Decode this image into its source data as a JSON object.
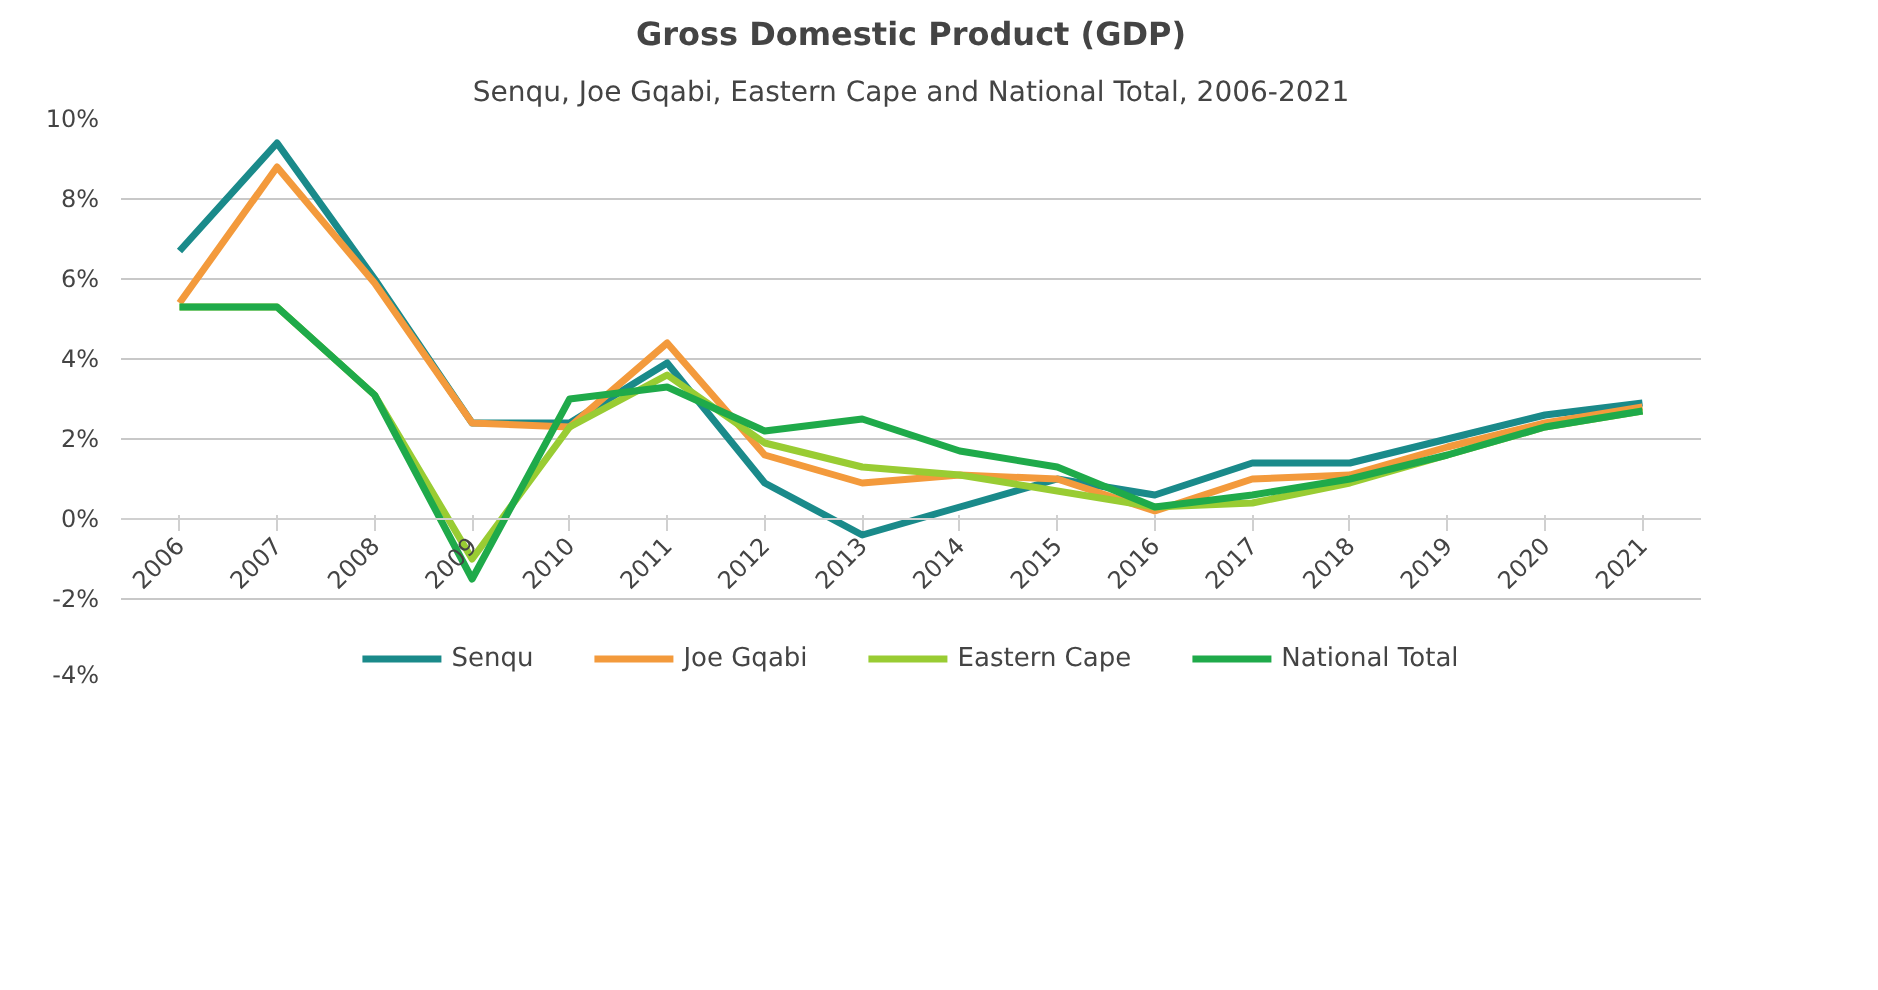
{
  "chart_data": {
    "type": "line",
    "title": "Gross Domestic Product (GDP)",
    "subtitle": "Senqu, Joe Gqabi, Eastern Cape and National Total, 2006-2021",
    "categories": [
      "2006",
      "2007",
      "2008",
      "2009",
      "2010",
      "2011",
      "2012",
      "2013",
      "2014",
      "2015",
      "2016",
      "2017",
      "2018",
      "2019",
      "2020",
      "2021"
    ],
    "series": [
      {
        "name": "Senqu",
        "color": "#1a8a8a",
        "values": [
          6.7,
          9.4,
          6.0,
          2.4,
          2.4,
          3.9,
          0.9,
          -0.4,
          0.3,
          1.0,
          0.6,
          1.4,
          1.4,
          2.0,
          2.6,
          2.9
        ]
      },
      {
        "name": "Joe Gqabi",
        "color": "#f39a3c",
        "values": [
          5.4,
          8.8,
          5.9,
          2.4,
          2.3,
          4.4,
          1.6,
          0.9,
          1.1,
          1.0,
          0.2,
          1.0,
          1.1,
          1.8,
          2.4,
          2.8
        ]
      },
      {
        "name": "Eastern Cape",
        "color": "#99cc33",
        "values": [
          5.3,
          5.3,
          3.1,
          -1.0,
          2.3,
          3.6,
          1.9,
          1.3,
          1.1,
          0.7,
          0.3,
          0.4,
          0.9,
          1.6,
          2.3,
          2.7
        ]
      },
      {
        "name": "National Total",
        "color": "#1faa4a",
        "values": [
          5.3,
          5.3,
          3.1,
          -1.5,
          3.0,
          3.3,
          2.2,
          2.5,
          1.7,
          1.3,
          0.3,
          0.6,
          1.0,
          1.6,
          2.3,
          2.7
        ]
      }
    ],
    "ylim": [
      -4,
      10
    ],
    "yticks": [
      {
        "value": -4,
        "label": "-4%"
      },
      {
        "value": -2,
        "label": "-2%"
      },
      {
        "value": 0,
        "label": "0%"
      },
      {
        "value": 2,
        "label": "2%"
      },
      {
        "value": 4,
        "label": "4%"
      },
      {
        "value": 6,
        "label": "6%"
      },
      {
        "value": 8,
        "label": "8%"
      },
      {
        "value": 10,
        "label": "10%"
      }
    ],
    "grid": "y",
    "legend": "bottom",
    "marker": "none",
    "line_style": "solid"
  }
}
